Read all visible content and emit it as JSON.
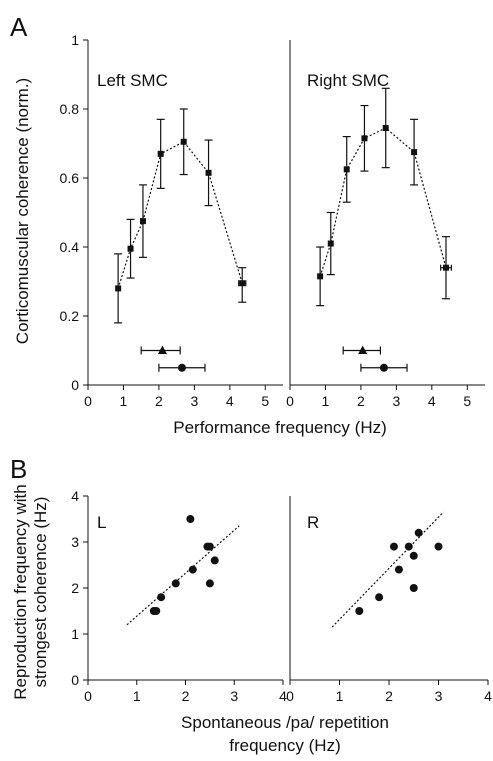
{
  "figure": {
    "panel_a_letter": "A",
    "panel_b_letter": "B",
    "panel_a_ylabel": "Corticomuscular coherence (norm.)",
    "panel_a_xlabel": "Performance frequency (Hz)",
    "panel_b_ylabel_line1": "Reproduction frequency with",
    "panel_b_ylabel_line2": "strongest coherence (Hz)",
    "panel_b_xlabel_line1": "Spontaneous /pa/ repetition",
    "panel_b_xlabel_line2": "frequency (Hz)"
  },
  "chart_data": [
    {
      "id": "A-left",
      "type": "line",
      "title": "Left SMC",
      "xlim": [
        0,
        5.5
      ],
      "ylim": [
        0,
        1
      ],
      "xticks": [
        "0",
        "1",
        "2",
        "3",
        "4",
        "5"
      ],
      "yticks": [
        "0",
        "0.2",
        "0.4",
        "0.6",
        "0.8",
        "1"
      ],
      "points": [
        {
          "x": 0.85,
          "y": 0.28,
          "ylo": 0.18,
          "yhi": 0.38
        },
        {
          "x": 1.2,
          "y": 0.395,
          "ylo": 0.31,
          "yhi": 0.48
        },
        {
          "x": 1.55,
          "y": 0.475,
          "ylo": 0.37,
          "yhi": 0.58
        },
        {
          "x": 2.05,
          "y": 0.67,
          "ylo": 0.57,
          "yhi": 0.77
        },
        {
          "x": 2.7,
          "y": 0.705,
          "ylo": 0.61,
          "yhi": 0.8
        },
        {
          "x": 3.4,
          "y": 0.615,
          "ylo": 0.52,
          "yhi": 0.71
        },
        {
          "x": 4.35,
          "y": 0.295,
          "ylo": 0.24,
          "yhi": 0.34,
          "xlo": 4.25,
          "xhi": 4.45
        }
      ],
      "markers": [
        {
          "shape": "triangle",
          "x": 2.1,
          "y": 0.1,
          "xlo": 1.5,
          "xhi": 2.6
        },
        {
          "shape": "circle",
          "x": 2.65,
          "y": 0.05,
          "xlo": 2.0,
          "xhi": 3.3
        }
      ]
    },
    {
      "id": "A-right",
      "type": "line",
      "title": "Right SMC",
      "xlim": [
        0,
        5.5
      ],
      "ylim": [
        0,
        1
      ],
      "xticks": [
        "0",
        "1",
        "2",
        "3",
        "4",
        "5"
      ],
      "points": [
        {
          "x": 0.85,
          "y": 0.315,
          "ylo": 0.23,
          "yhi": 0.4
        },
        {
          "x": 1.15,
          "y": 0.41,
          "ylo": 0.32,
          "yhi": 0.5
        },
        {
          "x": 1.6,
          "y": 0.625,
          "ylo": 0.53,
          "yhi": 0.72
        },
        {
          "x": 2.1,
          "y": 0.715,
          "ylo": 0.62,
          "yhi": 0.81
        },
        {
          "x": 2.7,
          "y": 0.745,
          "ylo": 0.63,
          "yhi": 0.86
        },
        {
          "x": 3.5,
          "y": 0.675,
          "ylo": 0.58,
          "yhi": 0.77
        },
        {
          "x": 4.4,
          "y": 0.34,
          "ylo": 0.25,
          "yhi": 0.43,
          "xlo": 4.25,
          "xhi": 4.55
        }
      ],
      "markers": [
        {
          "shape": "triangle",
          "x": 2.05,
          "y": 0.1,
          "xlo": 1.5,
          "xhi": 2.55
        },
        {
          "shape": "circle",
          "x": 2.65,
          "y": 0.05,
          "xlo": 2.0,
          "xhi": 3.3
        }
      ]
    },
    {
      "id": "B-left",
      "type": "scatter",
      "title": "L",
      "xlim": [
        0,
        4
      ],
      "ylim": [
        0,
        4
      ],
      "xticks": [
        "0",
        "1",
        "2",
        "3",
        "4"
      ],
      "yticks": [
        "0",
        "1",
        "2",
        "3",
        "4"
      ],
      "points": [
        {
          "x": 1.35,
          "y": 1.5
        },
        {
          "x": 1.4,
          "y": 1.5
        },
        {
          "x": 1.5,
          "y": 1.8
        },
        {
          "x": 1.8,
          "y": 2.1
        },
        {
          "x": 2.1,
          "y": 3.5
        },
        {
          "x": 2.15,
          "y": 2.4
        },
        {
          "x": 2.45,
          "y": 2.9
        },
        {
          "x": 2.5,
          "y": 2.9
        },
        {
          "x": 2.5,
          "y": 2.1
        },
        {
          "x": 2.6,
          "y": 2.6
        }
      ],
      "fit": {
        "x1": 0.8,
        "y1": 1.2,
        "x2": 3.1,
        "y2": 3.35
      }
    },
    {
      "id": "B-right",
      "type": "scatter",
      "title": "R",
      "xlim": [
        0,
        4
      ],
      "ylim": [
        0,
        4
      ],
      "xticks": [
        "0",
        "1",
        "2",
        "3",
        "4"
      ],
      "points": [
        {
          "x": 1.4,
          "y": 1.5
        },
        {
          "x": 1.8,
          "y": 1.8
        },
        {
          "x": 2.1,
          "y": 2.9
        },
        {
          "x": 2.2,
          "y": 2.4
        },
        {
          "x": 2.4,
          "y": 2.9
        },
        {
          "x": 2.5,
          "y": 2.7
        },
        {
          "x": 2.5,
          "y": 2.0
        },
        {
          "x": 2.6,
          "y": 3.2
        },
        {
          "x": 3.0,
          "y": 2.9
        }
      ],
      "fit": {
        "x1": 0.85,
        "y1": 1.15,
        "x2": 3.1,
        "y2": 3.65
      }
    }
  ]
}
